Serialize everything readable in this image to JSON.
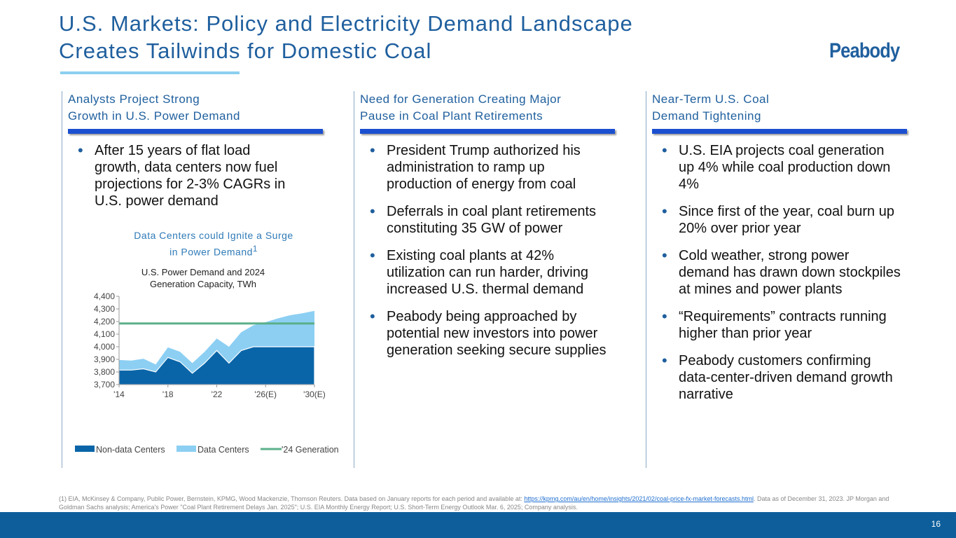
{
  "title": {
    "line1": "U.S. Markets: Policy and Electricity Demand Landscape",
    "line2": "Creates Tailwinds for Domestic Coal"
  },
  "logo": "Peabody",
  "columns": [
    {
      "head1": "Analysts Project Strong",
      "head2": "Growth in U.S. Power Demand",
      "bullets": [
        "After 15 years of flat load growth, data centers now fuel projections for 2-3% CAGRs in U.S. power demand"
      ]
    },
    {
      "head1": "Need for Generation Creating Major",
      "head2": "Pause in Coal Plant Retirements",
      "bullets": [
        "President Trump authorized his administration to ramp up production of energy from coal",
        "Deferrals in coal plant retirements constituting 35 GW of power",
        "Existing coal plants at 42% utilization can run harder, driving increased U.S. thermal demand",
        "Peabody being approached by potential new investors into power generation seeking secure supplies"
      ]
    },
    {
      "head1": "Near-Term U.S. Coal",
      "head2": "Demand Tightening",
      "bullets": [
        "U.S. EIA projects coal generation up 4% while coal production down 4%",
        "Since first of the year, coal burn up 20% over prior year",
        "Cold weather, strong power demand has drawn down stockpiles at mines and power plants",
        "“Requirements” contracts running higher than prior year",
        "Peabody customers confirming data-center-driven demand growth narrative"
      ]
    }
  ],
  "chart_heading": {
    "line1": "Data Centers could Ignite a Surge",
    "line2": "in Power Demand",
    "sup": "1"
  },
  "chart_data": {
    "type": "area",
    "title": "U.S. Power Demand and 2024 Generation Capacity, TWh",
    "title_lines": [
      "U.S. Power Demand and 2024",
      "Generation Capacity, TWh"
    ],
    "x": [
      2014,
      2015,
      2016,
      2017,
      2018,
      2019,
      2020,
      2021,
      2022,
      2023,
      2024,
      2025,
      2026,
      2027,
      2028,
      2029,
      2030
    ],
    "xticks": [
      {
        "x": 2014,
        "label": "'14"
      },
      {
        "x": 2018,
        "label": "'18"
      },
      {
        "x": 2022,
        "label": "'22"
      },
      {
        "x": 2026,
        "label": "'26(E)"
      },
      {
        "x": 2030,
        "label": "'30(E)"
      }
    ],
    "yticks": [
      3700,
      3800,
      3900,
      4000,
      4100,
      4200,
      4300,
      4400
    ],
    "ytick_labels": [
      "3,700",
      "3,800",
      "3,900",
      "4,000",
      "4,100",
      "4,200",
      "4,300",
      "4,400"
    ],
    "ylim": [
      3700,
      4400
    ],
    "series": [
      {
        "name": "Non-data Centers",
        "type": "area",
        "color": "#0a65a8",
        "values": [
          3815,
          3815,
          3825,
          3800,
          3915,
          3880,
          3790,
          3870,
          3970,
          3870,
          3970,
          4000,
          4000,
          4000,
          4000,
          4000,
          4000
        ]
      },
      {
        "name": "Data Centers",
        "type": "area-stacked-total",
        "color": "#8ccff3",
        "values": [
          3895,
          3890,
          3905,
          3860,
          3995,
          3960,
          3870,
          3960,
          4065,
          4000,
          4115,
          4170,
          4195,
          4225,
          4250,
          4265,
          4285
        ]
      },
      {
        "name": "'24 Generation",
        "type": "line",
        "color": "#5bb08a",
        "value": 4185
      }
    ],
    "legend": "bottom"
  },
  "footnote": {
    "pre": "(1) EIA, McKinsey & Company, Public Power, Bernstein, KPMG, Wood Mackenzie, Thomson Reuters. Data based on January reports for each period and available at: ",
    "link": "https://kpmg.com/au/en/home/insights/2021/02/coal-price-fx-market-forecasts.html",
    "post": ".  Data as of December 31, 2023. JP Morgan and Goldman Sachs analysis; America's Power \"Coal Plant Retirement Delays Jan. 2025\"; U.S. EIA Monthly Energy Report; U.S. Short-Term Energy Outlook Mar. 6, 2025;  Company analysis."
  },
  "page_number": "16"
}
